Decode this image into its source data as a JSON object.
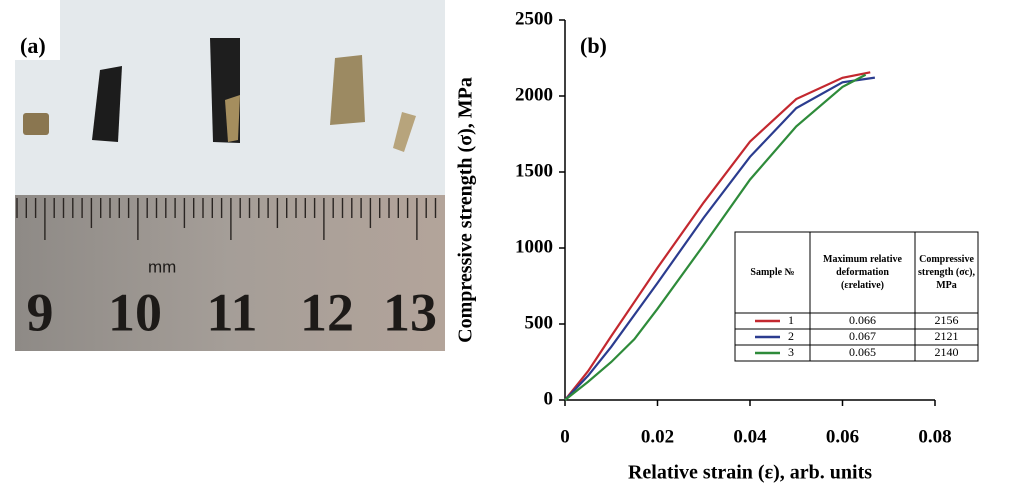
{
  "panel_a": {
    "label": "(a)",
    "ruler_numbers": [
      "9",
      "10",
      "11",
      "12",
      "13"
    ],
    "unit": "mm"
  },
  "chart_data": {
    "type": "line",
    "panel_label": "(b)",
    "xlabel": "Relative strain (ε), arb. units",
    "ylabel": "Compressive strength (σ), MPa",
    "xlim": [
      0,
      0.08
    ],
    "ylim": [
      0,
      2500
    ],
    "xticks": [
      0,
      0.02,
      0.04,
      0.06,
      0.08
    ],
    "yticks": [
      0,
      500,
      1000,
      1500,
      2000,
      2500
    ],
    "series": [
      {
        "name": "1",
        "color": "#c3282f",
        "x": [
          0,
          0.005,
          0.01,
          0.02,
          0.03,
          0.04,
          0.05,
          0.06,
          0.066
        ],
        "values": [
          0,
          190,
          420,
          870,
          1300,
          1700,
          1980,
          2120,
          2156
        ]
      },
      {
        "name": "2",
        "color": "#2b3c8f",
        "x": [
          0,
          0.005,
          0.01,
          0.02,
          0.03,
          0.04,
          0.05,
          0.06,
          0.067
        ],
        "values": [
          0,
          160,
          350,
          770,
          1200,
          1600,
          1920,
          2090,
          2121
        ]
      },
      {
        "name": "3",
        "color": "#2e8b3a",
        "x": [
          0,
          0.005,
          0.01,
          0.015,
          0.02,
          0.03,
          0.04,
          0.05,
          0.06,
          0.065
        ],
        "values": [
          0,
          120,
          250,
          400,
          600,
          1020,
          1450,
          1800,
          2060,
          2140
        ]
      }
    ],
    "table": {
      "header": [
        [
          "Sample №"
        ],
        [
          "Maximum relative",
          "deformation",
          "(εrelative)"
        ],
        [
          "Compressive",
          "strength (σc),",
          "MPa"
        ]
      ],
      "rows": [
        [
          "0.066",
          "2156"
        ],
        [
          "0.067",
          "2121"
        ],
        [
          "0.065",
          "2140"
        ]
      ]
    }
  }
}
